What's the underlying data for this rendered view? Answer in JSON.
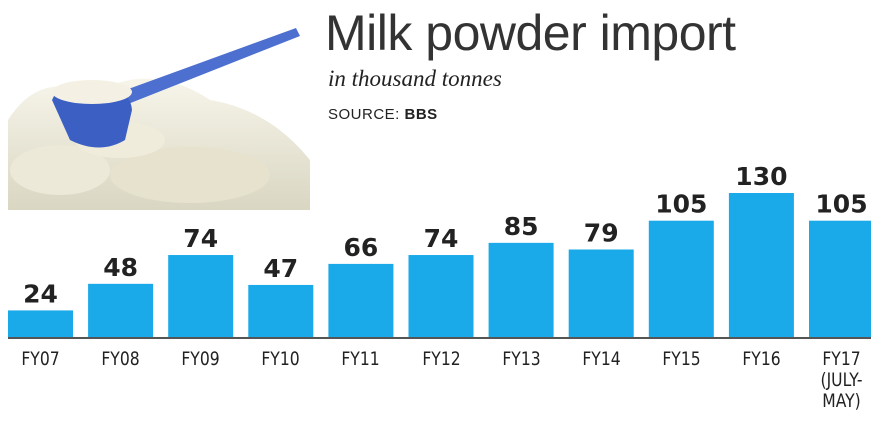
{
  "chart_data": {
    "type": "bar",
    "title": "Milk powder import",
    "subtitle": "in thousand tonnes",
    "source_label": "SOURCE:",
    "source": "BBS",
    "categories": [
      "FY07",
      "FY08",
      "FY09",
      "FY10",
      "FY11",
      "FY12",
      "FY13",
      "FY14",
      "FY15",
      "FY16",
      "FY17\n(JULY-\nMAY)"
    ],
    "values": [
      24,
      48,
      74,
      47,
      66,
      74,
      85,
      79,
      105,
      130,
      105
    ],
    "color": "#1aa9e9"
  }
}
